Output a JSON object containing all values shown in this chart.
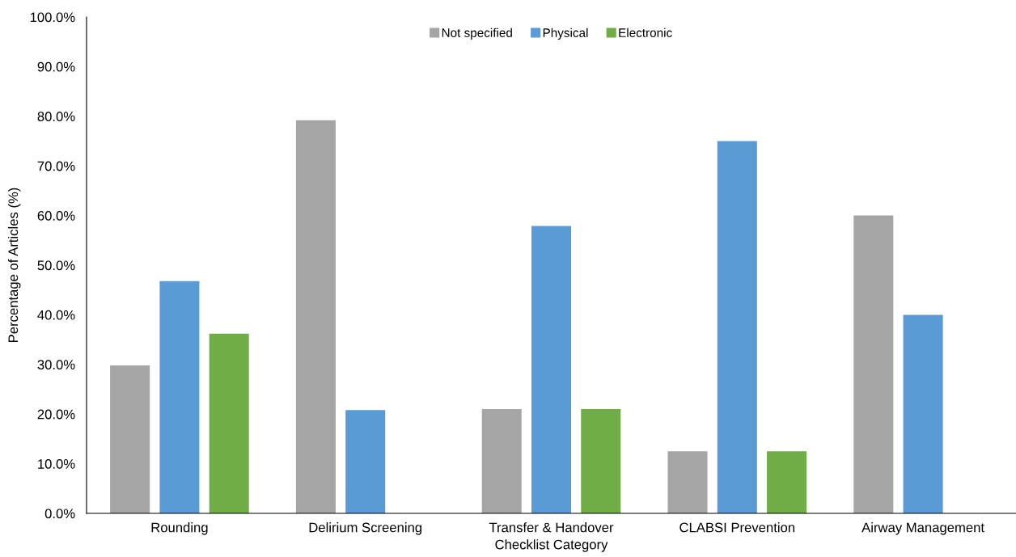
{
  "chart_data": {
    "type": "bar",
    "xlabel": "Checklist Category",
    "ylabel": "Percentage of Articles (%)",
    "categories": [
      "Rounding",
      "Delirium Screening",
      "Transfer & Handover",
      "CLABSI Prevention",
      "Airway Management"
    ],
    "series": [
      {
        "name": "Not specified",
        "color": "#a5a5a5",
        "values": [
          29.8,
          79.2,
          21.0,
          12.5,
          60.0
        ]
      },
      {
        "name": "Physical",
        "color": "#5b9bd5",
        "values": [
          46.8,
          20.8,
          57.9,
          75.0,
          40.0
        ]
      },
      {
        "name": "Electronic",
        "color": "#70ad47",
        "values": [
          36.2,
          null,
          21.0,
          12.5,
          null
        ]
      }
    ],
    "ylim": [
      0,
      100
    ],
    "yticks": [
      {
        "value": 0,
        "label": "0.0%"
      },
      {
        "value": 10,
        "label": "10.0%"
      },
      {
        "value": 20,
        "label": "20.0%"
      },
      {
        "value": 30,
        "label": "30.0%"
      },
      {
        "value": 40,
        "label": "40.0%"
      },
      {
        "value": 50,
        "label": "50.0%"
      },
      {
        "value": 60,
        "label": "60.0%"
      },
      {
        "value": 70,
        "label": "70.0%"
      },
      {
        "value": 80,
        "label": "80.0%"
      },
      {
        "value": 90,
        "label": "90.0%"
      },
      {
        "value": 100,
        "label": "100.0%"
      }
    ],
    "grid": false,
    "legend": "top"
  }
}
